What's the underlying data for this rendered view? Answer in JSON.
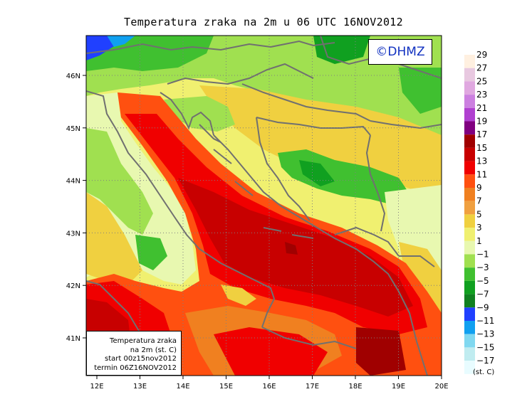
{
  "title": "Temperatura zraka na 2m u 06 UTC 16NOV2012",
  "logo_text": "©DHMZ",
  "infobox": {
    "line1": "Temperatura zraka",
    "line2": "na 2m (st. C)",
    "line3": "start 00z15nov2012",
    "line4": "termin 06Z16NOV2012"
  },
  "lon_labels": [
    "12E",
    "13E",
    "14E",
    "15E",
    "16E",
    "17E",
    "18E",
    "19E",
    "20E"
  ],
  "lat_labels": [
    "46N",
    "45N",
    "44N",
    "43N",
    "42N",
    "41N"
  ],
  "legend": {
    "unit": "(st. C)",
    "labels": [
      "29",
      "27",
      "25",
      "23",
      "21",
      "19",
      "17",
      "15",
      "13",
      "11",
      "9",
      "7",
      "5",
      "3",
      "1",
      "−1",
      "−3",
      "−5",
      "−7",
      "−9",
      "−11",
      "−13",
      "−15",
      "−17"
    ],
    "colors": [
      "#fff0e0",
      "#e8c8e0",
      "#e0a8e0",
      "#cc80e0",
      "#b040d0",
      "#800080",
      "#a00000",
      "#c80000",
      "#f00000",
      "#ff5010",
      "#f08020",
      "#f0a040",
      "#f0d040",
      "#f0f070",
      "#e8f8b0",
      "#a0e050",
      "#40c030",
      "#10a020",
      "#108020",
      "#2040ff",
      "#10a0f0",
      "#80d8f0",
      "#c0ecf0",
      "#e8fcff"
    ]
  },
  "map_colors": {
    "sea_warm": "#c80000",
    "sea_hot": "#a00000",
    "coast_red": "#f00000",
    "orange": "#ff5010",
    "light_orange": "#f08020",
    "yellow": "#f0d040",
    "pale_yellow": "#f0f070",
    "pale_green": "#e8f8b0",
    "green": "#a0e050",
    "mid_green": "#40c030",
    "dark_green": "#10a020",
    "blue": "#2040ff",
    "cyan": "#10a0f0",
    "border": "#707070"
  }
}
